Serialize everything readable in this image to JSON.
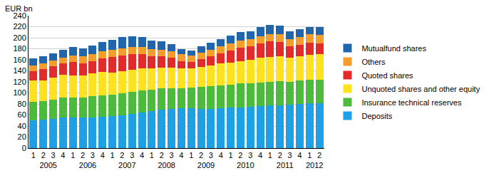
{
  "chart_data": {
    "type": "bar",
    "stacked": true,
    "y_label": "EUR bn",
    "categories": [
      "1",
      "2",
      "3",
      "4",
      "1",
      "2",
      "3",
      "4",
      "1",
      "2",
      "3",
      "4",
      "1",
      "2",
      "3",
      "4",
      "1",
      "2",
      "3",
      "4",
      "1",
      "2",
      "3",
      "4",
      "1",
      "2",
      "3",
      "4",
      "1",
      "2"
    ],
    "category_groups": [
      "2005",
      "2005",
      "2005",
      "2005",
      "2006",
      "2006",
      "2006",
      "2006",
      "2007",
      "2007",
      "2007",
      "2007",
      "2008",
      "2008",
      "2008",
      "2008",
      "2009",
      "2009",
      "2009",
      "2009",
      "2010",
      "2010",
      "2010",
      "2010",
      "2011",
      "2011",
      "2011",
      "2011",
      "2012",
      "2012"
    ],
    "ylim": [
      0,
      240
    ],
    "yticks": [
      0,
      20,
      40,
      60,
      80,
      100,
      120,
      140,
      160,
      180,
      200,
      220,
      240
    ],
    "grid": true,
    "legend": "right",
    "series": [
      {
        "name": "Deposits",
        "color": "#1ea0e6",
        "values": [
          50,
          51,
          53,
          55,
          55,
          55,
          56,
          57,
          58,
          60,
          62,
          65,
          67,
          70,
          71,
          72,
          72,
          71,
          71,
          72,
          73,
          74,
          75,
          76,
          77,
          78,
          79,
          80,
          81,
          81
        ]
      },
      {
        "name": "Insurance technical reserves",
        "color": "#4cbb3c",
        "values": [
          34,
          34,
          35,
          36,
          37,
          37,
          38,
          38,
          39,
          40,
          40,
          40,
          39,
          38,
          37,
          36,
          38,
          40,
          41,
          42,
          42,
          43,
          43,
          43,
          43,
          43,
          41,
          42,
          43,
          43
        ]
      },
      {
        "name": "Unquoted shares and other equity",
        "color": "#ffe21f",
        "values": [
          38,
          38,
          40,
          42,
          40,
          40,
          42,
          43,
          40,
          40,
          40,
          40,
          38,
          38,
          38,
          36,
          34,
          36,
          38,
          40,
          40,
          40,
          42,
          45,
          45,
          45,
          44,
          45,
          45,
          46
        ]
      },
      {
        "name": "Quoted shares",
        "color": "#e32b2b",
        "values": [
          18,
          20,
          20,
          20,
          24,
          22,
          22,
          25,
          28,
          28,
          28,
          25,
          22,
          20,
          18,
          14,
          12,
          14,
          16,
          18,
          22,
          25,
          24,
          26,
          28,
          26,
          20,
          20,
          22,
          20
        ]
      },
      {
        "name": "Others",
        "color": "#f59d2a",
        "values": [
          10,
          11,
          11,
          11,
          12,
          12,
          12,
          12,
          13,
          13,
          13,
          13,
          13,
          12,
          12,
          12,
          12,
          12,
          12,
          12,
          13,
          13,
          13,
          13,
          14,
          14,
          14,
          14,
          15,
          15
        ]
      },
      {
        "name": "Mutualfund shares",
        "color": "#2166ac",
        "values": [
          12,
          13,
          13,
          14,
          15,
          15,
          16,
          17,
          18,
          20,
          20,
          18,
          16,
          15,
          13,
          10,
          9,
          11,
          13,
          14,
          14,
          15,
          15,
          16,
          16,
          16,
          14,
          14,
          14,
          14
        ]
      }
    ]
  }
}
